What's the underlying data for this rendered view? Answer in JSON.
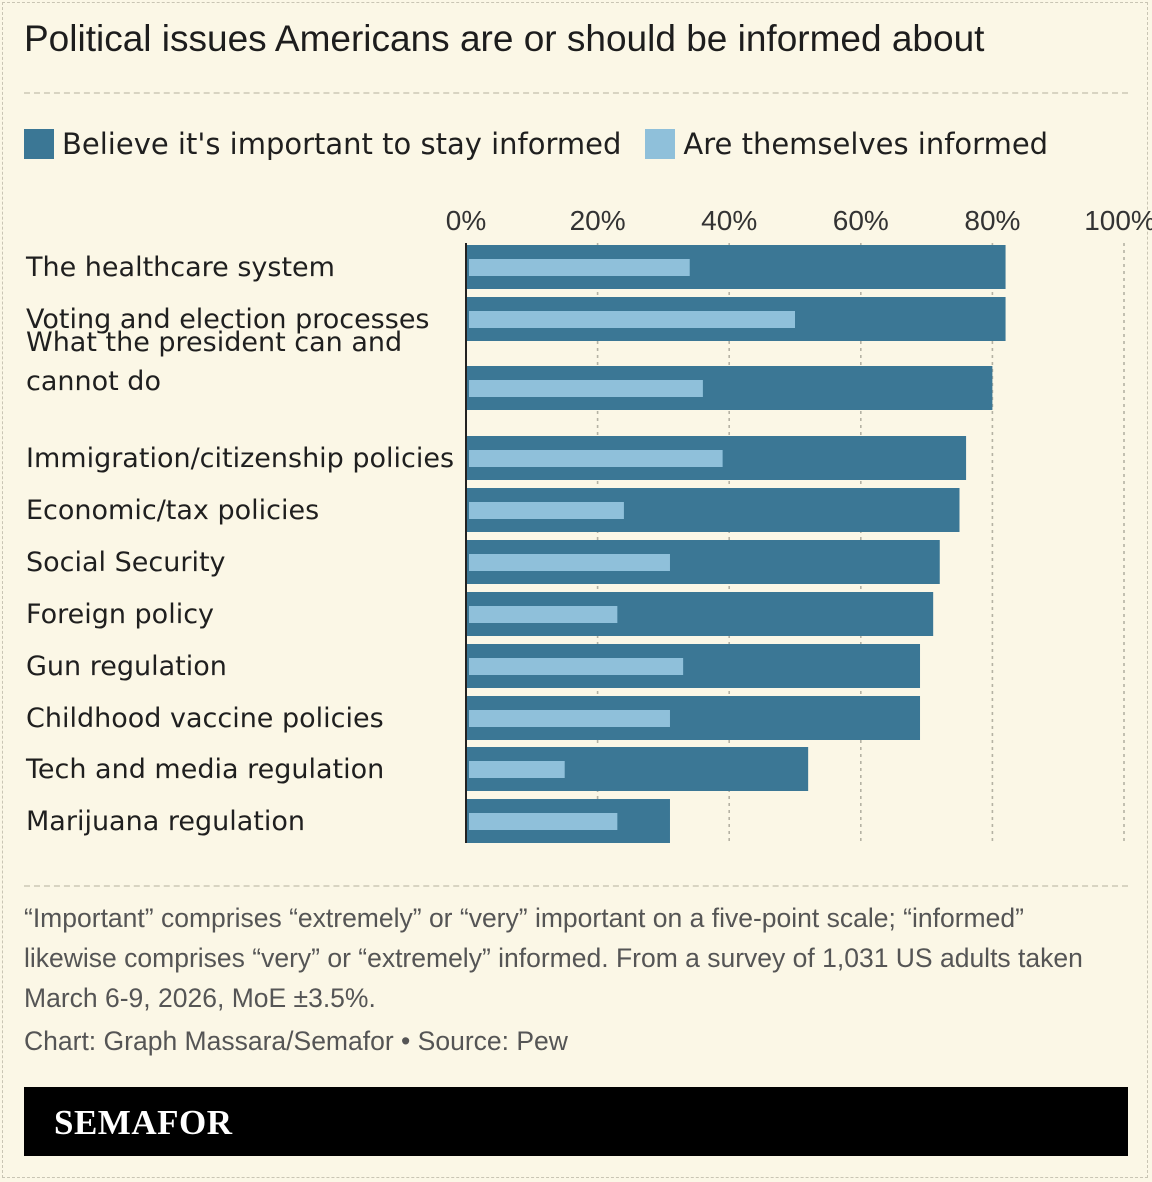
{
  "header": {
    "title": "Political issues Americans are or should be informed about"
  },
  "legend": [
    {
      "label": "Believe it's important to stay informed",
      "color": "#3b7795"
    },
    {
      "label": "Are themselves informed",
      "color": "#8fc0da"
    }
  ],
  "chart_data": {
    "type": "bar",
    "orientation": "horizontal",
    "categories": [
      "The healthcare system",
      "Voting and election processes",
      "What the president can and cannot do",
      "Immigration/citizenship policies",
      "Economic/tax policies",
      "Social Security",
      "Foreign policy",
      "Gun regulation",
      "Childhood vaccine policies",
      "Tech and media regulation",
      "Marijuana regulation"
    ],
    "series": [
      {
        "name": "Believe it's important to stay informed",
        "color": "#3b7795",
        "values": [
          82,
          82,
          80,
          76,
          75,
          72,
          71,
          69,
          69,
          52,
          31
        ]
      },
      {
        "name": "Are themselves informed",
        "color": "#8fc0da",
        "values": [
          34,
          50,
          36,
          39,
          24,
          31,
          23,
          33,
          31,
          15,
          23
        ]
      }
    ],
    "xlim": [
      0,
      100
    ],
    "xticks": [
      "0%",
      "20%",
      "40%",
      "60%",
      "80%",
      "100%"
    ],
    "tick_values": [
      0,
      20,
      40,
      60,
      80,
      100
    ],
    "grid": true,
    "legend_position": "top-left"
  },
  "footer": {
    "note": "“Important” comprises “extremely” or “very” important on a five-point scale; “informed” likewise comprises “very” or “extremely” informed. From a survey of 1,031 US adults taken March 6-9, 2026, MoE ±3.5%.",
    "credit": "Chart: Graph Massara/Semafor  • Source: Pew",
    "brand": "SEMAFOR"
  }
}
